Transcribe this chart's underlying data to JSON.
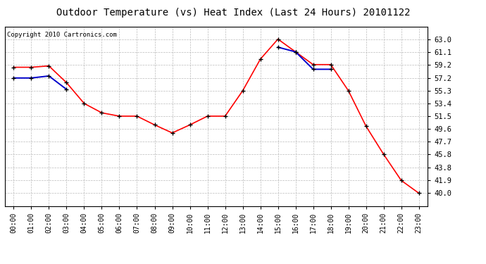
{
  "title": "Outdoor Temperature (vs) Heat Index (Last 24 Hours) 20101122",
  "copyright": "Copyright 2010 Cartronics.com",
  "x_labels": [
    "00:00",
    "01:00",
    "02:00",
    "03:00",
    "04:00",
    "05:00",
    "06:00",
    "07:00",
    "08:00",
    "09:00",
    "10:00",
    "11:00",
    "12:00",
    "13:00",
    "14:00",
    "15:00",
    "16:00",
    "17:00",
    "18:00",
    "19:00",
    "20:00",
    "21:00",
    "22:00",
    "23:00"
  ],
  "temp_red": [
    58.8,
    58.8,
    59.0,
    56.5,
    53.4,
    52.0,
    51.5,
    51.5,
    50.2,
    49.0,
    50.2,
    51.5,
    51.5,
    55.3,
    60.0,
    63.0,
    61.1,
    59.2,
    59.2,
    55.3,
    50.0,
    45.8,
    41.9,
    40.0
  ],
  "heat_blue": [
    57.2,
    57.2,
    57.5,
    55.5,
    null,
    null,
    null,
    null,
    null,
    null,
    null,
    null,
    null,
    null,
    null,
    61.8,
    61.1,
    58.5,
    58.5,
    null,
    null,
    null,
    null,
    null
  ],
  "ylim_min": 38.1,
  "ylim_max": 64.9,
  "yticks": [
    40.0,
    41.9,
    43.8,
    45.8,
    47.7,
    49.6,
    51.5,
    53.4,
    55.3,
    57.2,
    59.2,
    61.1,
    63.0
  ],
  "bg_color": "#ffffff",
  "grid_color": "#bbbbbb",
  "red_color": "#ff0000",
  "blue_color": "#0000cc",
  "marker_color": "#000000",
  "title_fontsize": 10,
  "copyright_fontsize": 6.5,
  "tick_fontsize": 7,
  "ytick_fontsize": 7.5
}
